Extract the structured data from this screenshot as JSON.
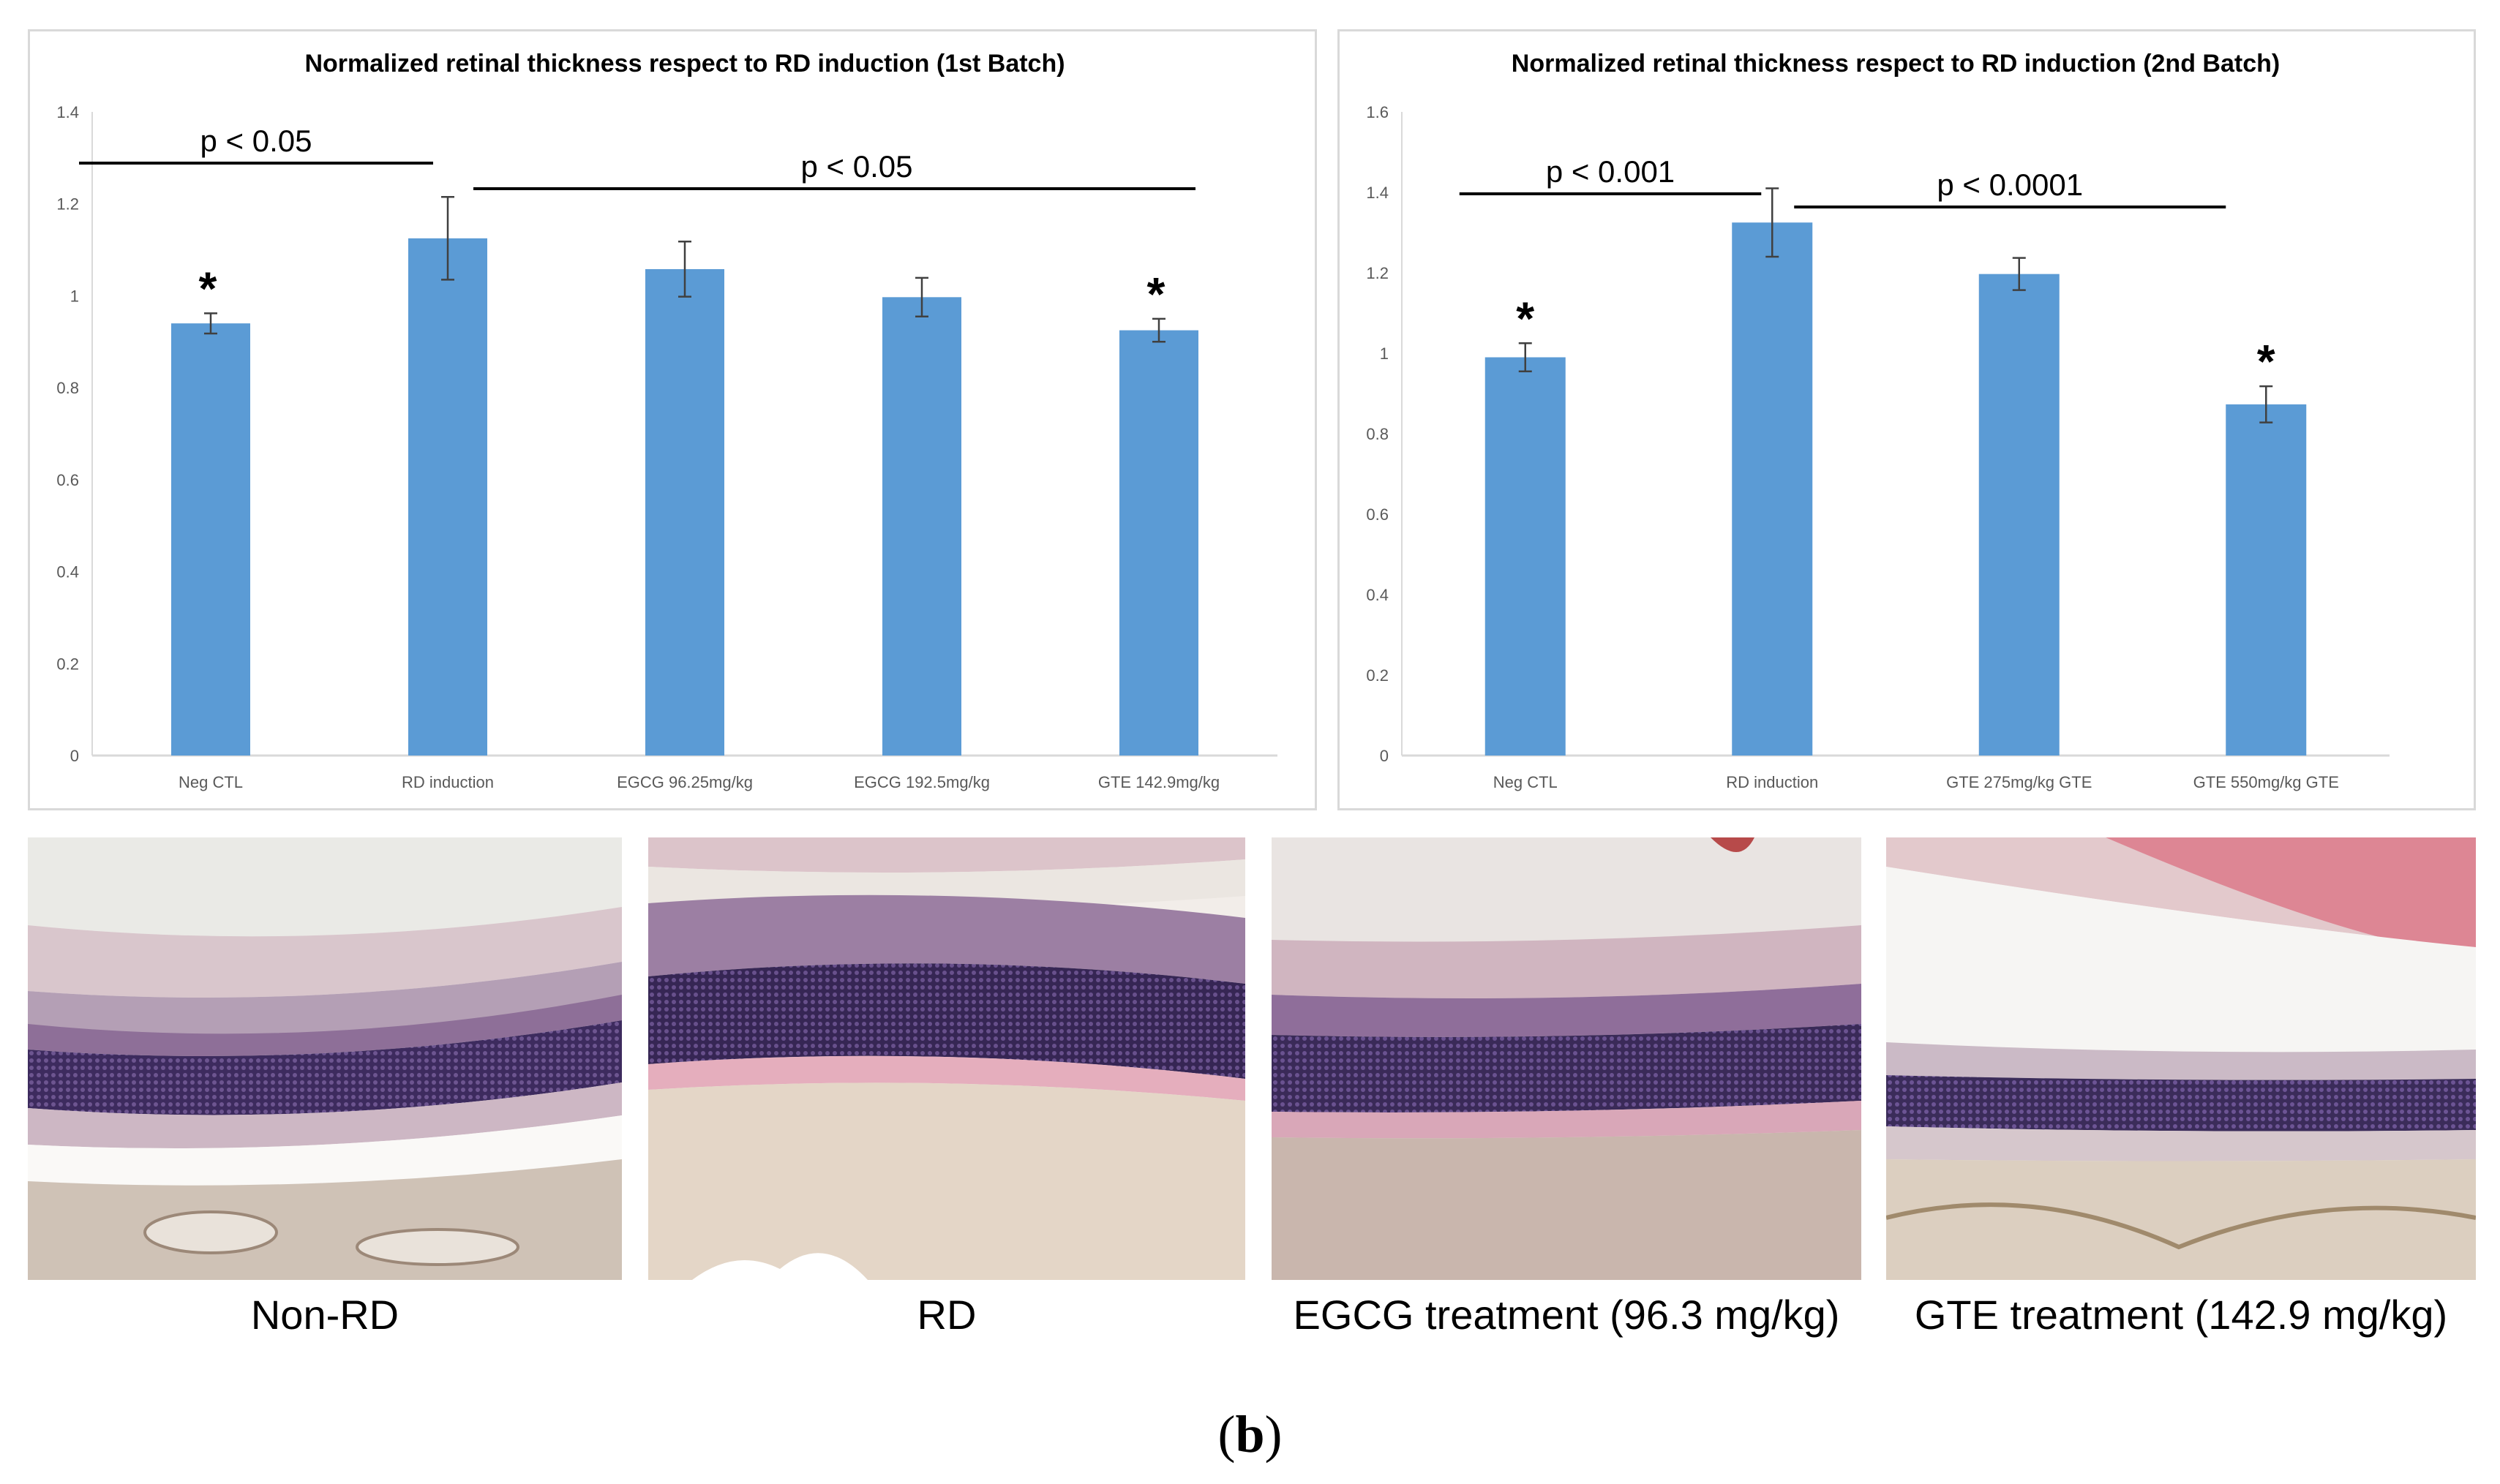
{
  "chart_data": [
    {
      "type": "bar",
      "title": "Normalized retinal thickness respect to RD induction (1st Batch)",
      "categories": [
        "Neg CTL",
        "RD induction",
        "EGCG 96.25mg/kg",
        "EGCG 192.5mg/kg",
        "GTE 142.9mg/kg"
      ],
      "values": [
        0.94,
        1.125,
        1.058,
        0.997,
        0.925
      ],
      "error": [
        0.022,
        0.09,
        0.06,
        0.042,
        0.025
      ],
      "ylim": [
        0,
        1.4
      ],
      "yticks": [
        "0",
        "0.2",
        "0.4",
        "0.6",
        "0.8",
        "1",
        "1.2",
        "1.4"
      ],
      "tick_step": 0.2,
      "grid": false,
      "bar_color": "#5b9bd5",
      "stars": [
        "*",
        "",
        "",
        "",
        "*"
      ],
      "significance": [
        {
          "label": "p < 0.05",
          "from": 0,
          "to": 1
        },
        {
          "label": "p < 0.05",
          "from": 1,
          "to": 4
        }
      ]
    },
    {
      "type": "bar",
      "title": "Normalized retinal thickness respect to RD induction (2nd Batch)",
      "categories": [
        "Neg CTL",
        "RD induction",
        "GTE 275mg/kg GTE",
        "GTE 550mg/kg GTE"
      ],
      "values": [
        0.99,
        1.325,
        1.197,
        0.873
      ],
      "error": [
        0.035,
        0.085,
        0.04,
        0.045
      ],
      "ylim": [
        0,
        1.6
      ],
      "yticks": [
        "0",
        "0.2",
        "0.4",
        "0.6",
        "0.8",
        "1",
        "1.2",
        "1.4",
        "1.6"
      ],
      "tick_step": 0.2,
      "grid": false,
      "bar_color": "#5b9bd5",
      "stars": [
        "*",
        "",
        "",
        "*"
      ],
      "significance": [
        {
          "label": "p < 0.001",
          "from": 0,
          "to": 1
        },
        {
          "label": "p < 0.0001",
          "from": 1,
          "to": 3
        }
      ]
    }
  ],
  "images": {
    "captions": [
      "Non-RD",
      "RD",
      "EGCG treatment (96.3 mg/kg)",
      "GTE treatment (142.9 mg/kg)"
    ]
  },
  "panel_label": {
    "open": "(",
    "letter": "b",
    "close": ")"
  }
}
